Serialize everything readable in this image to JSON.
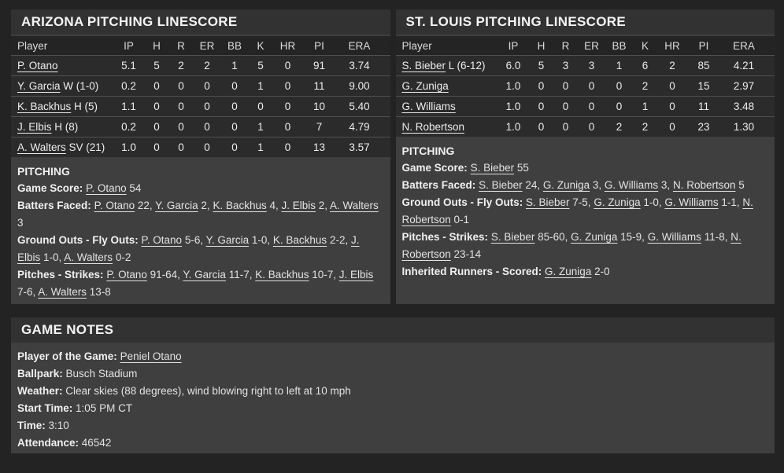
{
  "colors": {
    "page_bg": "#232323",
    "panel_bg": "#3f3f3f",
    "titlebar_bg": "#323232",
    "table_header_bg": "#242424",
    "table_row_bg": "#2b2b2b",
    "row_separator": "#505050",
    "text": "#e8e8e8"
  },
  "panels": [
    {
      "title": "ARIZONA PITCHING LINESCORE",
      "table": {
        "columns": [
          "Player",
          "IP",
          "H",
          "R",
          "ER",
          "BB",
          "K",
          "HR",
          "PI",
          "ERA"
        ],
        "rows": [
          {
            "player": "P. Otano",
            "suffix": "",
            "stats": [
              "5.1",
              "5",
              "2",
              "2",
              "1",
              "5",
              "0",
              "91",
              "3.74"
            ]
          },
          {
            "player": "Y. Garcia",
            "suffix": " W (1-0)",
            "stats": [
              "0.2",
              "0",
              "0",
              "0",
              "0",
              "1",
              "0",
              "11",
              "9.00"
            ]
          },
          {
            "player": "K. Backhus",
            "suffix": " H (5)",
            "stats": [
              "1.1",
              "0",
              "0",
              "0",
              "0",
              "0",
              "0",
              "10",
              "5.40"
            ]
          },
          {
            "player": "J. Elbis",
            "suffix": " H (8)",
            "stats": [
              "0.2",
              "0",
              "0",
              "0",
              "0",
              "1",
              "0",
              "7",
              "4.79"
            ]
          },
          {
            "player": "A. Walters",
            "suffix": " SV (21)",
            "stats": [
              "1.0",
              "0",
              "0",
              "0",
              "0",
              "1",
              "0",
              "13",
              "3.57"
            ]
          }
        ]
      },
      "notes_heading": "PITCHING",
      "notes": [
        {
          "label": "Game Score:",
          "parts": [
            {
              "t": "P. Otano",
              "u": 1
            },
            {
              "t": " 54"
            }
          ]
        },
        {
          "label": "Batters Faced:",
          "parts": [
            {
              "t": "P. Otano",
              "u": 1
            },
            {
              "t": " 22, "
            },
            {
              "t": "Y. Garcia",
              "u": 1
            },
            {
              "t": " 2, "
            },
            {
              "t": "K. Backhus",
              "u": 1
            },
            {
              "t": " 4, "
            },
            {
              "t": "J. Elbis",
              "u": 1
            },
            {
              "t": " 2, "
            },
            {
              "t": "A. Walters",
              "u": 1
            },
            {
              "t": " 3"
            }
          ]
        },
        {
          "label": "Ground Outs - Fly Outs:",
          "parts": [
            {
              "t": "P. Otano",
              "u": 1
            },
            {
              "t": " 5-6, "
            },
            {
              "t": "Y. Garcia",
              "u": 1
            },
            {
              "t": " 1-0, "
            },
            {
              "t": "K. Backhus",
              "u": 1
            },
            {
              "t": " 2-2, "
            },
            {
              "t": "J. Elbis",
              "u": 1
            },
            {
              "t": " 1-0, "
            },
            {
              "t": "A. Walters",
              "u": 1
            },
            {
              "t": " 0-2"
            }
          ]
        },
        {
          "label": "Pitches - Strikes:",
          "parts": [
            {
              "t": "P. Otano",
              "u": 1
            },
            {
              "t": " 91-64, "
            },
            {
              "t": "Y. Garcia",
              "u": 1
            },
            {
              "t": " 11-7, "
            },
            {
              "t": "K. Backhus",
              "u": 1
            },
            {
              "t": " 10-7, "
            },
            {
              "t": "J. Elbis",
              "u": 1
            },
            {
              "t": " 7-6, "
            },
            {
              "t": "A. Walters",
              "u": 1
            },
            {
              "t": " 13-8"
            }
          ]
        }
      ]
    },
    {
      "title": "ST. LOUIS PITCHING LINESCORE",
      "table": {
        "columns": [
          "Player",
          "IP",
          "H",
          "R",
          "ER",
          "BB",
          "K",
          "HR",
          "PI",
          "ERA"
        ],
        "rows": [
          {
            "player": "S. Bieber",
            "suffix": " L (6-12)",
            "stats": [
              "6.0",
              "5",
              "3",
              "3",
              "1",
              "6",
              "2",
              "85",
              "4.21"
            ]
          },
          {
            "player": "G. Zuniga",
            "suffix": "",
            "stats": [
              "1.0",
              "0",
              "0",
              "0",
              "0",
              "2",
              "0",
              "15",
              "2.97"
            ]
          },
          {
            "player": "G. Williams",
            "suffix": "",
            "stats": [
              "1.0",
              "0",
              "0",
              "0",
              "0",
              "1",
              "0",
              "11",
              "3.48"
            ]
          },
          {
            "player": "N. Robertson",
            "suffix": "",
            "stats": [
              "1.0",
              "0",
              "0",
              "0",
              "2",
              "2",
              "0",
              "23",
              "1.30"
            ]
          }
        ]
      },
      "notes_heading": "PITCHING",
      "notes": [
        {
          "label": "Game Score:",
          "parts": [
            {
              "t": "S. Bieber",
              "u": 1
            },
            {
              "t": " 55"
            }
          ]
        },
        {
          "label": "Batters Faced:",
          "parts": [
            {
              "t": "S. Bieber",
              "u": 1
            },
            {
              "t": " 24, "
            },
            {
              "t": "G. Zuniga",
              "u": 1
            },
            {
              "t": " 3, "
            },
            {
              "t": "G. Williams",
              "u": 1
            },
            {
              "t": " 3, "
            },
            {
              "t": "N. Robertson",
              "u": 1
            },
            {
              "t": " 5"
            }
          ]
        },
        {
          "label": "Ground Outs - Fly Outs:",
          "parts": [
            {
              "t": "S. Bieber",
              "u": 1
            },
            {
              "t": " 7-5, "
            },
            {
              "t": "G. Zuniga",
              "u": 1
            },
            {
              "t": " 1-0, "
            },
            {
              "t": "G. Williams",
              "u": 1
            },
            {
              "t": " 1-1, "
            },
            {
              "t": "N. Robertson",
              "u": 1
            },
            {
              "t": " 0-1"
            }
          ]
        },
        {
          "label": "Pitches - Strikes:",
          "parts": [
            {
              "t": "S. Bieber",
              "u": 1
            },
            {
              "t": " 85-60, "
            },
            {
              "t": "G. Zuniga",
              "u": 1
            },
            {
              "t": " 15-9, "
            },
            {
              "t": "G. Williams",
              "u": 1
            },
            {
              "t": " 11-8, "
            },
            {
              "t": "N. Robertson",
              "u": 1
            },
            {
              "t": " 23-14"
            }
          ]
        },
        {
          "label": "Inherited Runners - Scored:",
          "parts": [
            {
              "t": "G. Zuniga",
              "u": 1
            },
            {
              "t": " 2-0"
            }
          ]
        }
      ]
    }
  ],
  "game_notes": {
    "title": "GAME NOTES",
    "lines": [
      {
        "label": "Player of the Game:",
        "parts": [
          {
            "t": "Peniel Otano",
            "u": 1
          }
        ]
      },
      {
        "label": "Ballpark:",
        "parts": [
          {
            "t": "Busch Stadium"
          }
        ]
      },
      {
        "label": "Weather:",
        "parts": [
          {
            "t": "Clear skies (88 degrees), wind blowing right to left at 10 mph"
          }
        ]
      },
      {
        "label": "Start Time:",
        "parts": [
          {
            "t": "1:05 PM CT"
          }
        ]
      },
      {
        "label": "Time:",
        "parts": [
          {
            "t": "3:10"
          }
        ]
      },
      {
        "label": "Attendance:",
        "parts": [
          {
            "t": "46542"
          }
        ]
      }
    ]
  }
}
